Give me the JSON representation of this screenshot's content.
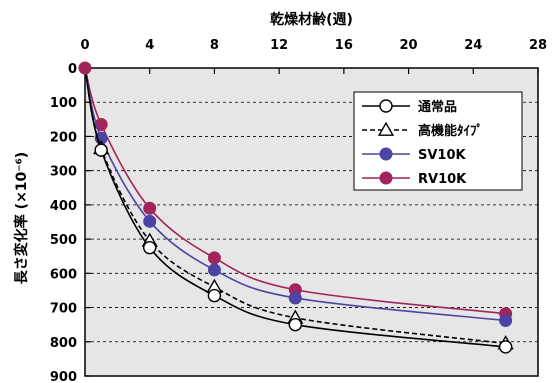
{
  "chart_data": {
    "type": "line",
    "xlabel": "乾燥材齢(週)",
    "ylabel": "長さ変化率 (×10⁻⁶)",
    "xlim": [
      0,
      28
    ],
    "ylim": [
      0,
      900
    ],
    "y_inverted": true,
    "x_ticks": [
      0,
      4,
      8,
      12,
      16,
      20,
      24,
      28
    ],
    "y_ticks": [
      0,
      100,
      200,
      300,
      400,
      500,
      600,
      700,
      800,
      900
    ],
    "y_tick_labels": [
      "0",
      "100",
      "200",
      "300",
      "400",
      "500",
      "600",
      "700",
      "800",
      "900"
    ],
    "grid": "horizontal-dashed",
    "legend_position": "top-right",
    "series": [
      {
        "name": "通常品",
        "color": "#000000",
        "line_style": "solid",
        "marker": "circle-open",
        "x": [
          0,
          1,
          4,
          8,
          13,
          26
        ],
        "y": [
          0,
          240,
          525,
          665,
          750,
          815
        ]
      },
      {
        "name": "高機能ﾀｲﾌﾟ",
        "color": "#000000",
        "line_style": "dashed",
        "marker": "triangle-open",
        "x": [
          0,
          1,
          4,
          8,
          13,
          26
        ],
        "y": [
          0,
          235,
          505,
          640,
          730,
          805
        ]
      },
      {
        "name": "SV10K",
        "color": "#4b44a3",
        "line_style": "solid",
        "marker": "circle-filled",
        "x": [
          0,
          1,
          4,
          8,
          13,
          26
        ],
        "y": [
          0,
          205,
          448,
          590,
          672,
          738
        ]
      },
      {
        "name": "RV10K",
        "color": "#a3245b",
        "line_style": "solid",
        "marker": "circle-filled",
        "x": [
          0,
          1,
          4,
          8,
          13,
          26
        ],
        "y": [
          0,
          165,
          410,
          555,
          648,
          718
        ]
      }
    ]
  }
}
